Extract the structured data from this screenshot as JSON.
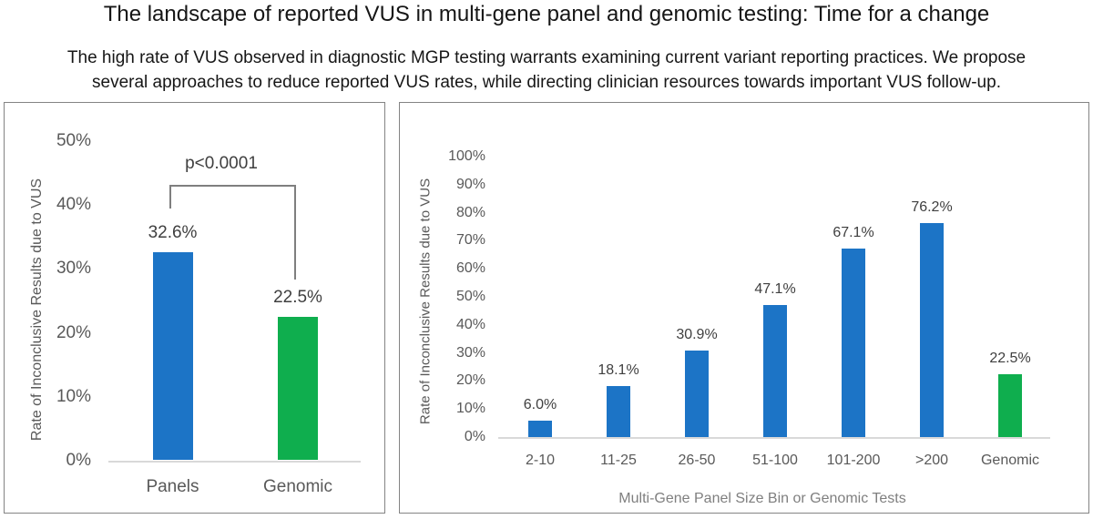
{
  "header": {
    "title": "The landscape of reported VUS in multi-gene panel and genomic testing: Time for a change",
    "subtitle_line1": "The high rate of VUS observed in diagnostic MGP testing warrants examining current variant reporting practices. We propose",
    "subtitle_line2": "several approaches to reduce reported VUS rates, while directing clinician resources towards important VUS follow-up."
  },
  "colors": {
    "bar_blue": "#1c74c6",
    "bar_green": "#0fae4e",
    "axis_line": "#d9d9d9",
    "tick_text": "#595959",
    "data_label_text": "#3f3f3f",
    "bracket": "#7f7f7f",
    "panel_border": "#848484"
  },
  "chart_data": [
    {
      "type": "bar",
      "title": "",
      "categories": [
        "Panels",
        "Genomic"
      ],
      "values": [
        32.6,
        22.5
      ],
      "value_labels": [
        "32.6%",
        "22.5%"
      ],
      "bar_colors": [
        "#1c74c6",
        "#0fae4e"
      ],
      "ylabel": "Rate of Inconclusive Results due to VUS",
      "xlabel": "",
      "ylim": [
        0,
        50
      ],
      "y_ticks": [
        "0%",
        "10%",
        "20%",
        "30%",
        "40%",
        "50%"
      ],
      "y_tick_values": [
        0,
        10,
        20,
        30,
        40,
        50
      ],
      "annotation": "p<0.0001",
      "grid": false,
      "legend": "none"
    },
    {
      "type": "bar",
      "title": "",
      "categories": [
        "2-10",
        "11-25",
        "26-50",
        "51-100",
        "101-200",
        ">200",
        "Genomic"
      ],
      "values": [
        6.0,
        18.1,
        30.9,
        47.1,
        67.1,
        76.2,
        22.5
      ],
      "value_labels": [
        "6.0%",
        "18.1%",
        "30.9%",
        "47.1%",
        "67.1%",
        "76.2%",
        "22.5%"
      ],
      "bar_colors": [
        "#1c74c6",
        "#1c74c6",
        "#1c74c6",
        "#1c74c6",
        "#1c74c6",
        "#1c74c6",
        "#0fae4e"
      ],
      "ylabel": "Rate of Inconclusive Results due to VUS",
      "xlabel": "Multi-Gene Panel Size Bin or Genomic Tests",
      "ylim": [
        0,
        100
      ],
      "y_ticks": [
        "0%",
        "10%",
        "20%",
        "30%",
        "40%",
        "50%",
        "60%",
        "70%",
        "80%",
        "90%",
        "100%"
      ],
      "y_tick_values": [
        0,
        10,
        20,
        30,
        40,
        50,
        60,
        70,
        80,
        90,
        100
      ],
      "annotation": "",
      "grid": false,
      "legend": "none"
    }
  ]
}
